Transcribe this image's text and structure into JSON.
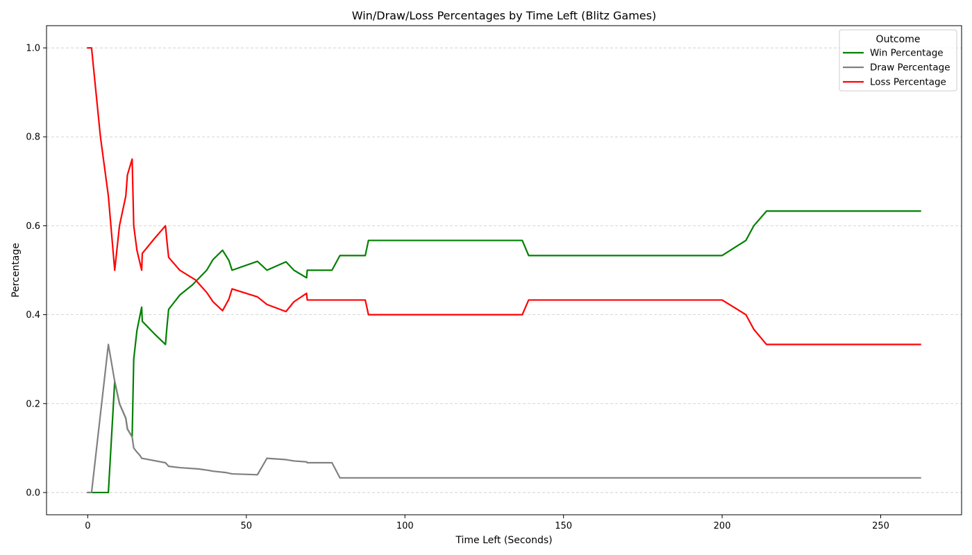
{
  "chart_data": {
    "type": "line",
    "title": "Win/Draw/Loss Percentages by Time Left (Blitz Games)",
    "xlabel": "Time Left (Seconds)",
    "ylabel": "Percentage",
    "xlim": [
      -13,
      275.5
    ],
    "ylim": [
      -0.05,
      1.05
    ],
    "x_ticks": [
      0,
      50,
      100,
      150,
      200,
      250
    ],
    "y_ticks": [
      0.0,
      0.2,
      0.4,
      0.6,
      0.8,
      1.0
    ],
    "x_tick_labels": [
      "0",
      "50",
      "100",
      "150",
      "200",
      "250"
    ],
    "y_tick_labels": [
      "0.0",
      "0.2",
      "0.4",
      "0.6",
      "0.8",
      "1.0"
    ],
    "grid": {
      "axis": "y",
      "style": "dashed"
    },
    "legend": {
      "title": "Outcome",
      "position": "top-right"
    },
    "series": [
      {
        "name": "Win Percentage",
        "color": "#008000",
        "points": [
          [
            0,
            0
          ],
          [
            1.2,
            0
          ],
          [
            6.5,
            0
          ],
          [
            8.5,
            0.25
          ],
          [
            10,
            0.2
          ],
          [
            12,
            0.167
          ],
          [
            12.5,
            0.143
          ],
          [
            14,
            0.125
          ],
          [
            14.5,
            0.3
          ],
          [
            15.5,
            0.364
          ],
          [
            17,
            0.417
          ],
          [
            17.2,
            0.385
          ],
          [
            21,
            0.357
          ],
          [
            24.5,
            0.333
          ],
          [
            25,
            0.375
          ],
          [
            25.5,
            0.412
          ],
          [
            29,
            0.444
          ],
          [
            33,
            0.467
          ],
          [
            37.5,
            0.5
          ],
          [
            39.5,
            0.524
          ],
          [
            42.5,
            0.545
          ],
          [
            44.5,
            0.522
          ],
          [
            45.5,
            0.5
          ],
          [
            53.5,
            0.52
          ],
          [
            56.5,
            0.5
          ],
          [
            62.5,
            0.519
          ],
          [
            65,
            0.5
          ],
          [
            69,
            0.483
          ],
          [
            69.2,
            0.5
          ],
          [
            77,
            0.5
          ],
          [
            79.5,
            0.533
          ],
          [
            87.5,
            0.533
          ],
          [
            88.5,
            0.567
          ],
          [
            137,
            0.567
          ],
          [
            139,
            0.533
          ],
          [
            200,
            0.533
          ],
          [
            207.5,
            0.567
          ],
          [
            210,
            0.6
          ],
          [
            214,
            0.633
          ],
          [
            262.5,
            0.633
          ]
        ]
      },
      {
        "name": "Draw Percentage",
        "color": "#808080",
        "points": [
          [
            0,
            0
          ],
          [
            1.2,
            0
          ],
          [
            6.5,
            0.333
          ],
          [
            8.5,
            0.25
          ],
          [
            10,
            0.2
          ],
          [
            12,
            0.167
          ],
          [
            12.5,
            0.143
          ],
          [
            14,
            0.125
          ],
          [
            14.5,
            0.1
          ],
          [
            15.5,
            0.091
          ],
          [
            16.5,
            0.083
          ],
          [
            17,
            0.077
          ],
          [
            24.5,
            0.067
          ],
          [
            25.5,
            0.059
          ],
          [
            29,
            0.056
          ],
          [
            35,
            0.053
          ],
          [
            38,
            0.05
          ],
          [
            39.5,
            0.048
          ],
          [
            43.5,
            0.045
          ],
          [
            45.5,
            0.042
          ],
          [
            53.5,
            0.04
          ],
          [
            56.5,
            0.077
          ],
          [
            62.5,
            0.074
          ],
          [
            65,
            0.071
          ],
          [
            69,
            0.069
          ],
          [
            69.2,
            0.067
          ],
          [
            77,
            0.067
          ],
          [
            79.5,
            0.033
          ],
          [
            262.5,
            0.033
          ]
        ]
      },
      {
        "name": "Loss Percentage",
        "color": "#ff0000",
        "points": [
          [
            0,
            1
          ],
          [
            1.2,
            1
          ],
          [
            4,
            0.8
          ],
          [
            6.5,
            0.667
          ],
          [
            8.5,
            0.5
          ],
          [
            10,
            0.6
          ],
          [
            12,
            0.667
          ],
          [
            12.5,
            0.714
          ],
          [
            14,
            0.75
          ],
          [
            14.5,
            0.6
          ],
          [
            15.5,
            0.545
          ],
          [
            17,
            0.5
          ],
          [
            17.2,
            0.538
          ],
          [
            21,
            0.571
          ],
          [
            24.5,
            0.6
          ],
          [
            25,
            0.563
          ],
          [
            25.5,
            0.529
          ],
          [
            29,
            0.5
          ],
          [
            34,
            0.478
          ],
          [
            37.5,
            0.45
          ],
          [
            39.5,
            0.429
          ],
          [
            42.5,
            0.409
          ],
          [
            44.5,
            0.435
          ],
          [
            45.5,
            0.458
          ],
          [
            53.5,
            0.44
          ],
          [
            56.5,
            0.423
          ],
          [
            62.5,
            0.407
          ],
          [
            65,
            0.429
          ],
          [
            69,
            0.448
          ],
          [
            69.2,
            0.433
          ],
          [
            87.5,
            0.433
          ],
          [
            88.5,
            0.4
          ],
          [
            137,
            0.4
          ],
          [
            139,
            0.433
          ],
          [
            200,
            0.433
          ],
          [
            207.5,
            0.4
          ],
          [
            210,
            0.367
          ],
          [
            214,
            0.333
          ],
          [
            262.5,
            0.333
          ]
        ]
      }
    ]
  }
}
